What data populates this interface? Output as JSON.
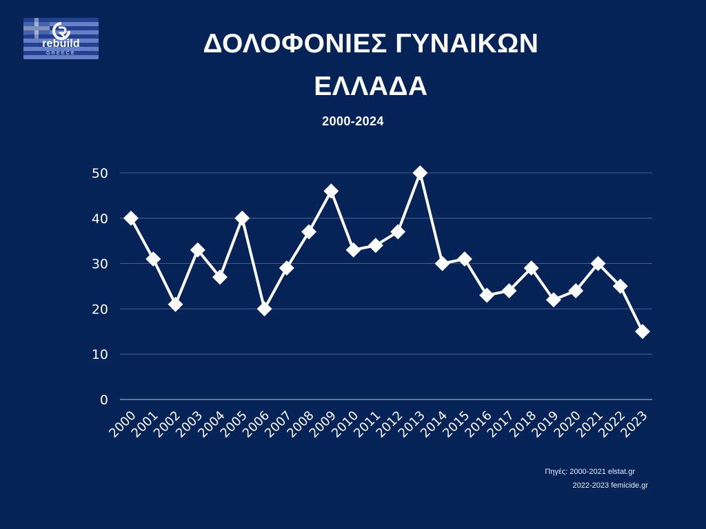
{
  "logo": {
    "word": "rebuild",
    "sub": "GREECE"
  },
  "title": {
    "line1": "ΔΟΛΟΦΟΝΙΕΣ ΓΥΝΑΙΚΩΝ",
    "line2": "ΕΛΛΑΔΑ"
  },
  "subtitle": "2000-2024",
  "sources": {
    "line1": "Πηγές: 2000-2021 elstat.gr",
    "line2": "2022-2023 femicide.gr"
  },
  "colors": {
    "background": "#062357",
    "line": "#ffffff",
    "gridline": "#5a72a6",
    "axis": "#9aa8c9"
  },
  "chart_data": {
    "type": "line",
    "title": "ΔΟΛΟΦΟΝΙΕΣ ΓΥΝΑΙΚΩΝ ΕΛΛΑΔΑ",
    "subtitle": "2000-2024",
    "xlabel": "",
    "ylabel": "",
    "ylim": [
      0,
      50
    ],
    "yticks": [
      0,
      10,
      20,
      30,
      40,
      50
    ],
    "grid": true,
    "categories": [
      "2000",
      "2001",
      "2002",
      "2003",
      "2004",
      "2005",
      "2006",
      "2007",
      "2008",
      "2009",
      "2010",
      "2011",
      "2012",
      "2013",
      "2014",
      "2015",
      "2016",
      "2017",
      "2018",
      "2019",
      "2020",
      "2021",
      "2022",
      "2023"
    ],
    "series": [
      {
        "values": [
          40,
          31,
          21,
          33,
          27,
          40,
          20,
          29,
          37,
          46,
          33,
          34,
          37,
          50,
          30,
          31,
          23,
          24,
          29,
          22,
          24,
          30,
          25,
          15
        ]
      }
    ]
  }
}
